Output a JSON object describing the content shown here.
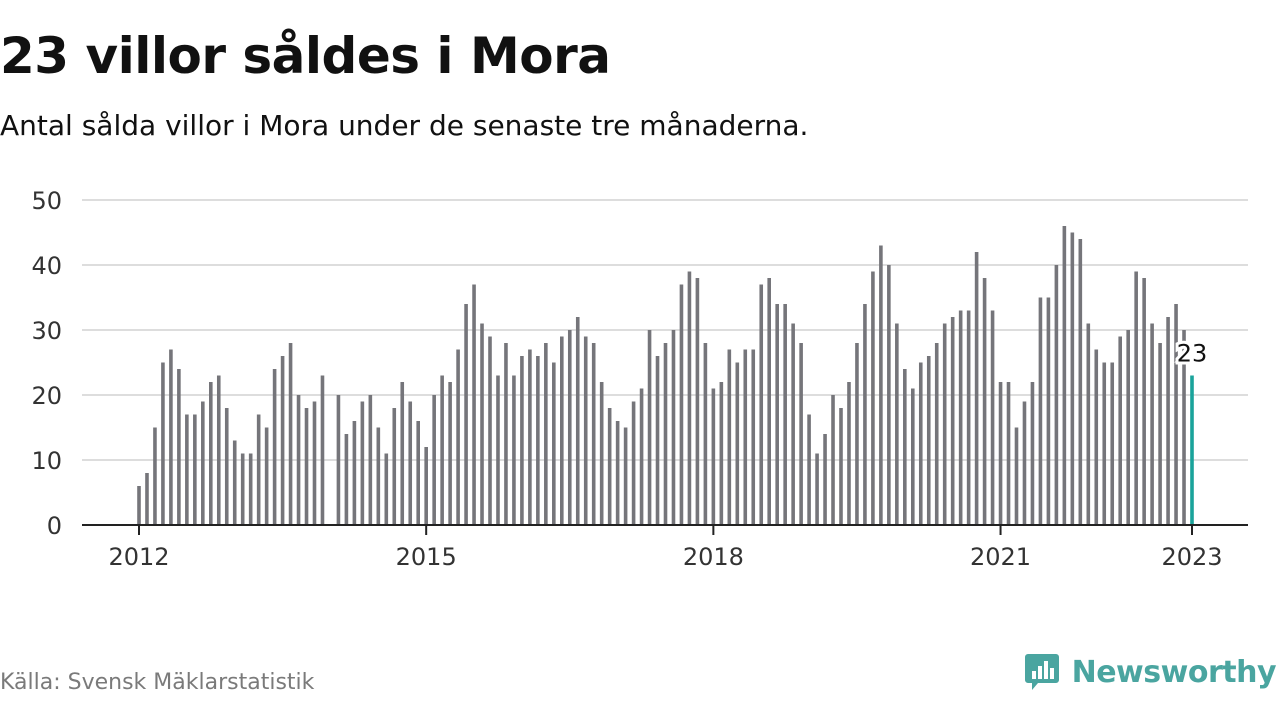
{
  "header": {
    "title": "23 villor såldes i Mora",
    "subtitle": "Antal sålda villor i Mora under de senaste tre månaderna."
  },
  "footer": {
    "source": "Källa: Svensk Mäklarstatistik",
    "brand": "Newsworthy"
  },
  "colors": {
    "bar": "#75757a",
    "highlight": "#1aa39b",
    "grid": "#dddddd",
    "axis": "#222222",
    "brand": "#4aa5a0"
  },
  "icons": {
    "brand_logo": "newsworthy-logo-icon"
  },
  "chart_data": {
    "type": "bar",
    "title": "23 villor såldes i Mora",
    "subtitle": "Antal sålda villor i Mora under de senaste tre månaderna.",
    "xlabel": "",
    "ylabel": "",
    "ylim": [
      0,
      50
    ],
    "yticks": [
      0,
      10,
      20,
      30,
      40,
      50
    ],
    "xticks": [
      "2012",
      "2015",
      "2018",
      "2021",
      "2023"
    ],
    "grid": true,
    "legend": "none",
    "highlight_label": "23",
    "x_start": "2012-01",
    "values": [
      6,
      8,
      15,
      25,
      27,
      24,
      17,
      17,
      19,
      22,
      23,
      18,
      13,
      11,
      11,
      17,
      15,
      24,
      26,
      28,
      20,
      18,
      19,
      23,
      null,
      20,
      14,
      16,
      19,
      20,
      15,
      11,
      18,
      22,
      19,
      16,
      12,
      20,
      23,
      22,
      27,
      34,
      37,
      31,
      29,
      23,
      28,
      23,
      26,
      27,
      26,
      28,
      25,
      29,
      30,
      32,
      29,
      28,
      22,
      18,
      16,
      15,
      19,
      21,
      30,
      26,
      28,
      30,
      37,
      39,
      38,
      28,
      21,
      22,
      27,
      25,
      27,
      27,
      37,
      38,
      34,
      34,
      31,
      28,
      17,
      11,
      14,
      20,
      18,
      22,
      28,
      34,
      39,
      43,
      40,
      31,
      24,
      21,
      25,
      26,
      28,
      31,
      32,
      33,
      33,
      42,
      38,
      33,
      22,
      22,
      15,
      19,
      22,
      35,
      35,
      40,
      46,
      45,
      44,
      31,
      27,
      25,
      25,
      29,
      30,
      39,
      38,
      31,
      28,
      32,
      34,
      30,
      23
    ]
  }
}
